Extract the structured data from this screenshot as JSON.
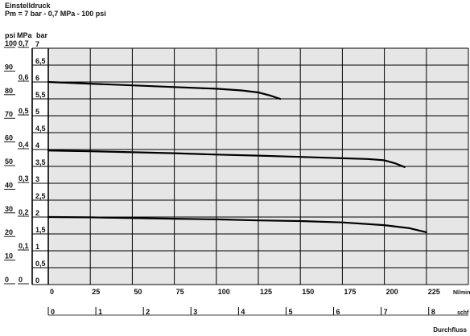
{
  "header": {
    "title": "Einstelldruck",
    "subtitle": "Pm = 7 bar - 0,7 MPa - 100 psi"
  },
  "chart_data": {
    "type": "line",
    "title": "Einstelldruck",
    "subtitle": "Pm = 7 bar - 0,7 MPa - 100 psi",
    "xlabel": "Durchfluss",
    "xlim": [
      0,
      250
    ],
    "ylim": [
      0,
      7
    ],
    "grid": true,
    "x_ticks": [
      "0",
      "25",
      "50",
      "75",
      "100",
      "125",
      "150",
      "175",
      "200",
      "225"
    ],
    "x_unit": "Nl/min",
    "x2_ticks": [
      "0",
      "1",
      "2",
      "3",
      "4",
      "5",
      "6",
      "7",
      "8"
    ],
    "x2_unit": "schf",
    "y_units": [
      "psi",
      "MPa",
      "bar"
    ],
    "y_psi_ticks": [
      "100",
      "90",
      "80",
      "70",
      "60",
      "50",
      "40",
      "30",
      "20",
      "10",
      "0"
    ],
    "y_mpa_ticks": [
      "0.7",
      "0.6",
      "0.5",
      "0.4",
      "0.3",
      "0.2",
      "0.1",
      "0"
    ],
    "y_bar_ticks": [
      "7",
      "6.5",
      "6",
      "5.5",
      "5",
      "4.5",
      "4",
      "3.5",
      "3",
      "2.5",
      "2",
      "1.5",
      "1",
      "0.5",
      "0"
    ],
    "series": [
      {
        "x": [
          0,
          25,
          50,
          75,
          100,
          115,
          125,
          132,
          138
        ],
        "y": [
          6.0,
          5.95,
          5.9,
          5.85,
          5.8,
          5.75,
          5.69,
          5.6,
          5.5
        ]
      },
      {
        "x": [
          0,
          25,
          50,
          75,
          100,
          125,
          150,
          175,
          190,
          200,
          207,
          212
        ],
        "y": [
          3.97,
          3.95,
          3.92,
          3.89,
          3.85,
          3.82,
          3.78,
          3.74,
          3.72,
          3.68,
          3.58,
          3.48
        ]
      },
      {
        "x": [
          0,
          25,
          50,
          75,
          100,
          125,
          150,
          175,
          200,
          215,
          225
        ],
        "y": [
          2.0,
          1.99,
          1.97,
          1.95,
          1.93,
          1.9,
          1.88,
          1.84,
          1.76,
          1.67,
          1.55
        ]
      }
    ]
  }
}
